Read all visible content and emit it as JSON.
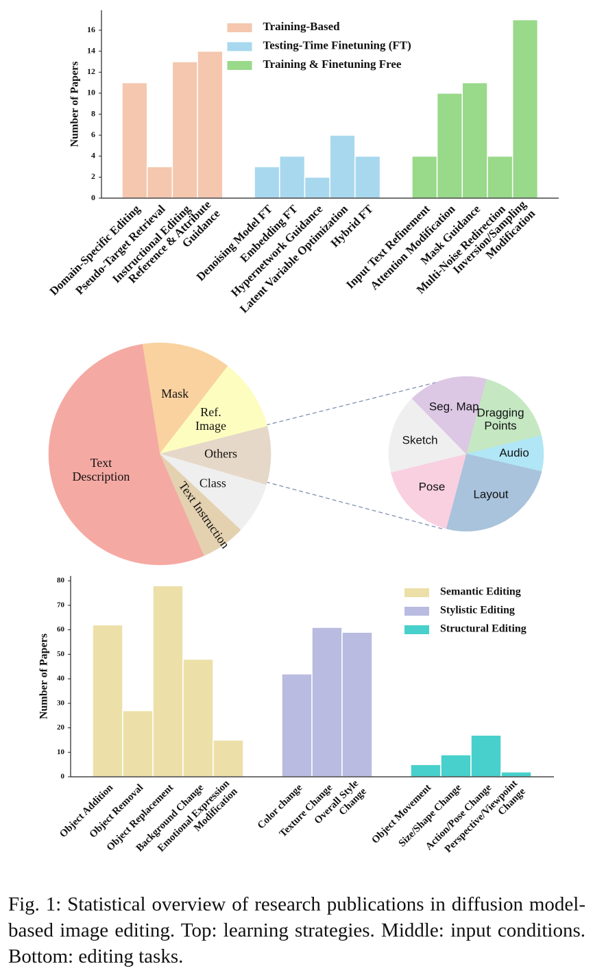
{
  "chart_data": [
    {
      "type": "bar",
      "ylabel": "Number of Papers",
      "categories": [
        "Domain-Specific Editing",
        "Pseudo-Target Retrieval",
        "Instructional Editing",
        "Reference & Attribute\nGuidance",
        null,
        "Denoising Model FT",
        "Embedding FT",
        "Hypernetwork Guidance",
        "Latent Variable Optimization",
        "Hybrid FT",
        null,
        "Input Text Refinement",
        "Attention Modification",
        "Mask Guidance",
        "Multi-Noise Redirection",
        "Inversion/Sampling\nModification"
      ],
      "series": [
        {
          "name": "Training-Based",
          "color": "#f4c7ae",
          "values": [
            11,
            3,
            13,
            14,
            null,
            null,
            null,
            null,
            null,
            null,
            null,
            null,
            null,
            null,
            null,
            null
          ]
        },
        {
          "name": "Testing-Time Finetuning (FT)",
          "color": "#a8d8ee",
          "values": [
            null,
            null,
            null,
            null,
            null,
            3,
            4,
            2,
            6,
            4,
            null,
            null,
            null,
            null,
            null,
            null
          ]
        },
        {
          "name": "Training & Finetuning Free",
          "color": "#98d98a",
          "values": [
            null,
            null,
            null,
            null,
            null,
            null,
            null,
            null,
            null,
            null,
            null,
            4,
            10,
            11,
            4,
            17
          ]
        }
      ],
      "ylim": [
        0,
        17.9
      ],
      "yticks": [
        0,
        2,
        4,
        6,
        8,
        10,
        12,
        14,
        16
      ],
      "legend": "upper center"
    },
    {
      "type": "pie",
      "categories": [
        "Mask",
        "Ref.\nImage",
        "Others",
        "Class",
        "Text Instruction",
        "Text\nDescription"
      ],
      "values": [
        13,
        10.5,
        8.5,
        7.5,
        6.5,
        54
      ],
      "colors": [
        "#fad2a0",
        "#fdfdc0",
        "#e6d8c8",
        "#efefef",
        "#e4d1b0",
        "#f5a9a3"
      ]
    },
    {
      "type": "pie",
      "categories": [
        "Dragging\nPoints",
        "Audio",
        "Layout",
        "Pose",
        "Sketch",
        "Seg. Map"
      ],
      "values": [
        17,
        7.5,
        25.5,
        17,
        16.5,
        16.5
      ],
      "colors": [
        "#c5e8c3",
        "#b0e6f5",
        "#a9c3dc",
        "#f9d0e0",
        "#efefef",
        "#dcc7e4"
      ]
    },
    {
      "type": "bar",
      "ylabel": "Number of Papers",
      "categories": [
        "Object Addition",
        "Object Removal",
        "Object Replacement",
        "Background Change",
        "Emotional Expression\nModification",
        null,
        "Color change",
        "Texture Change",
        "Overall Style\nChange",
        null,
        "Object Movement",
        "Size/Shape Change",
        "Action/Pose Change",
        "Perspective/Viewpoint\nChange"
      ],
      "series": [
        {
          "name": "Semantic Editing",
          "color": "#ece0a8",
          "values": [
            62,
            27,
            78,
            48,
            15,
            null,
            null,
            null,
            null,
            null,
            null,
            null,
            null,
            null
          ]
        },
        {
          "name": "Stylistic Editing",
          "color": "#babbe0",
          "values": [
            null,
            null,
            null,
            null,
            null,
            null,
            42,
            61,
            59,
            null,
            null,
            null,
            null,
            null
          ]
        },
        {
          "name": "Structural Editing",
          "color": "#48d0cc",
          "values": [
            null,
            null,
            null,
            null,
            null,
            null,
            null,
            null,
            null,
            null,
            5,
            9,
            17,
            2
          ]
        }
      ],
      "ylim": [
        0,
        82
      ],
      "yticks": [
        0,
        10,
        20,
        30,
        40,
        50,
        60,
        70,
        80
      ],
      "legend": "upper right"
    }
  ],
  "caption": "Fig. 1: Statistical overview of research publications in diffusion model-based image editing. Top: learning strategies. Middle: input conditions. Bottom: editing tasks."
}
